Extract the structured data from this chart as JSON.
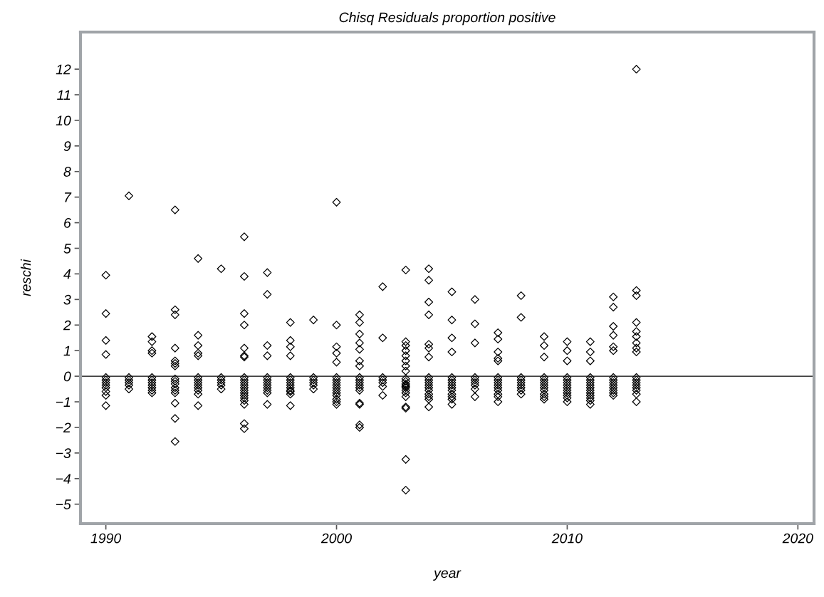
{
  "chart_data": {
    "type": "scatter",
    "title": "Chisq Residuals proportion positive",
    "xlabel": "year",
    "ylabel": "reschi",
    "marker": "diamond",
    "grid": false,
    "legend": false,
    "xlim": [
      1988.9,
      2020.7
    ],
    "ylim": [
      -5.76,
      13.45
    ],
    "xticks": [
      1990,
      2000,
      2010,
      2020
    ],
    "yticks": [
      -5,
      -4,
      -3,
      -2,
      -1,
      0,
      1,
      2,
      3,
      4,
      5,
      6,
      7,
      8,
      9,
      10,
      11,
      12
    ],
    "ref_lines": [
      {
        "axis": "y",
        "value": 0,
        "color": "#000000"
      }
    ],
    "series": [
      {
        "color": "#000000",
        "x": [
          1990,
          1990,
          1990,
          1990,
          1990,
          1990,
          1990,
          1990,
          1990,
          1990,
          1990,
          1990,
          1991,
          1991,
          1991,
          1991,
          1991,
          1991,
          1992,
          1992,
          1992,
          1992,
          1992,
          1992,
          1992,
          1992,
          1992,
          1992,
          1992,
          1993,
          1993,
          1993,
          1993,
          1993,
          1993,
          1993,
          1993,
          1993,
          1993,
          1993,
          1993,
          1993,
          1993,
          1993,
          1993,
          1994,
          1994,
          1994,
          1994,
          1994,
          1994,
          1994,
          1994,
          1994,
          1994,
          1994,
          1994,
          1994,
          1995,
          1995,
          1995,
          1995,
          1995,
          1995,
          1996,
          1996,
          1996,
          1996,
          1996,
          1996,
          1996,
          1996,
          1996,
          1996,
          1996,
          1996,
          1996,
          1996,
          1996,
          1996,
          1996,
          1996,
          1996,
          1996,
          1997,
          1997,
          1997,
          1997,
          1997,
          1997,
          1997,
          1997,
          1997,
          1997,
          1997,
          1997,
          1998,
          1998,
          1998,
          1998,
          1998,
          1998,
          1998,
          1998,
          1998,
          1998,
          1998,
          1998,
          1998,
          1999,
          1999,
          1999,
          1999,
          1999,
          1999,
          2000,
          2000,
          2000,
          2000,
          2000,
          2000,
          2000,
          2000,
          2000,
          2000,
          2000,
          2000,
          2000,
          2000,
          2000,
          2000,
          2001,
          2001,
          2001,
          2001,
          2001,
          2001,
          2001,
          2001,
          2001,
          2001,
          2001,
          2001,
          2001,
          2001,
          2001,
          2001,
          2001,
          2002,
          2002,
          2002,
          2002,
          2002,
          2002,
          2002,
          2003,
          2003,
          2003,
          2003,
          2003,
          2003,
          2003,
          2003,
          2003,
          2003,
          2003,
          2003,
          2003,
          2003,
          2003,
          2003,
          2003,
          2003,
          2003,
          2003,
          2003,
          2004,
          2004,
          2004,
          2004,
          2004,
          2004,
          2004,
          2004,
          2004,
          2004,
          2004,
          2004,
          2004,
          2004,
          2004,
          2004,
          2004,
          2005,
          2005,
          2005,
          2005,
          2005,
          2005,
          2005,
          2005,
          2005,
          2005,
          2005,
          2005,
          2005,
          2005,
          2006,
          2006,
          2006,
          2006,
          2006,
          2006,
          2006,
          2006,
          2006,
          2007,
          2007,
          2007,
          2007,
          2007,
          2007,
          2007,
          2007,
          2007,
          2007,
          2007,
          2007,
          2007,
          2007,
          2008,
          2008,
          2008,
          2008,
          2008,
          2008,
          2008,
          2008,
          2008,
          2009,
          2009,
          2009,
          2009,
          2009,
          2009,
          2009,
          2009,
          2009,
          2009,
          2009,
          2009,
          2010,
          2010,
          2010,
          2010,
          2010,
          2010,
          2010,
          2010,
          2010,
          2010,
          2010,
          2010,
          2010,
          2011,
          2011,
          2011,
          2011,
          2011,
          2011,
          2011,
          2011,
          2011,
          2011,
          2011,
          2011,
          2011,
          2011,
          2012,
          2012,
          2012,
          2012,
          2012,
          2012,
          2012,
          2012,
          2012,
          2012,
          2012,
          2012,
          2012,
          2012,
          2013,
          2013,
          2013,
          2013,
          2013,
          2013,
          2013,
          2013,
          2013,
          2013,
          2013,
          2013,
          2013,
          2013,
          2013,
          2013,
          2013
        ],
        "values": [
          3.95,
          2.45,
          1.4,
          0.85,
          -0.05,
          -0.15,
          -0.25,
          -0.35,
          -0.45,
          -0.6,
          -0.75,
          -1.15,
          7.05,
          -0.05,
          -0.15,
          -0.25,
          -0.35,
          -0.5,
          1.55,
          1.35,
          1.0,
          0.9,
          -0.05,
          -0.15,
          -0.25,
          -0.35,
          -0.45,
          -0.55,
          -0.65,
          6.5,
          2.6,
          2.4,
          1.1,
          0.6,
          0.5,
          0.4,
          -0.1,
          -0.2,
          -0.3,
          -0.45,
          -0.55,
          -0.65,
          -1.05,
          -1.65,
          -2.55,
          4.6,
          1.6,
          1.2,
          0.9,
          0.8,
          -0.05,
          -0.15,
          -0.25,
          -0.35,
          -0.45,
          -0.55,
          -0.7,
          -1.15,
          4.2,
          -0.05,
          -0.15,
          -0.25,
          -0.35,
          -0.5,
          5.45,
          3.9,
          2.45,
          2.0,
          1.1,
          0.8,
          0.75,
          -0.05,
          -0.15,
          -0.25,
          -0.35,
          -0.45,
          -0.55,
          -0.65,
          -0.75,
          -0.85,
          -0.95,
          -1.1,
          -1.85,
          -2.05,
          4.05,
          3.2,
          1.2,
          0.8,
          -0.05,
          -0.15,
          -0.25,
          -0.35,
          -0.45,
          -0.55,
          -0.65,
          -1.1,
          2.1,
          1.4,
          1.15,
          0.8,
          -0.05,
          -0.15,
          -0.25,
          -0.35,
          -0.45,
          -0.55,
          -0.7,
          -1.15,
          -0.6,
          2.2,
          -0.05,
          -0.15,
          -0.25,
          -0.35,
          -0.5,
          6.8,
          2.0,
          1.15,
          0.9,
          0.55,
          -0.05,
          -0.15,
          -0.25,
          -0.35,
          -0.45,
          -0.55,
          -0.65,
          -0.75,
          -0.9,
          -1.1,
          -1.0,
          2.4,
          2.1,
          1.65,
          1.3,
          1.05,
          0.6,
          0.4,
          -0.05,
          -0.15,
          -0.25,
          -0.35,
          -0.45,
          -0.55,
          -1.05,
          -1.1,
          -1.9,
          -2.0,
          3.5,
          1.5,
          -0.05,
          -0.15,
          -0.25,
          -0.4,
          -0.75,
          4.15,
          1.35,
          1.2,
          1.0,
          0.8,
          0.6,
          0.4,
          0.2,
          -0.1,
          -0.2,
          -0.3,
          -0.4,
          -0.55,
          -0.8,
          -1.2,
          -1.25,
          -3.25,
          -4.45,
          -0.65,
          -0.45,
          -0.35,
          4.2,
          3.75,
          2.9,
          2.4,
          1.25,
          1.1,
          0.75,
          -0.05,
          -0.15,
          -0.25,
          -0.35,
          -0.45,
          -0.55,
          -0.7,
          -0.9,
          -1.2,
          -0.8,
          3.3,
          2.2,
          1.5,
          0.95,
          -0.05,
          -0.15,
          -0.25,
          -0.35,
          -0.45,
          -0.55,
          -0.7,
          -0.9,
          -1.1,
          -0.8,
          3.0,
          2.05,
          1.3,
          -0.05,
          -0.15,
          -0.25,
          -0.35,
          -0.5,
          -0.8,
          1.7,
          1.45,
          0.95,
          0.7,
          0.6,
          -0.05,
          -0.15,
          -0.25,
          -0.35,
          -0.45,
          -0.55,
          -0.7,
          -0.8,
          -1.0,
          3.15,
          2.3,
          -0.05,
          -0.15,
          -0.25,
          -0.35,
          -0.45,
          -0.55,
          -0.7,
          1.55,
          1.2,
          0.75,
          -0.05,
          -0.15,
          -0.25,
          -0.35,
          -0.45,
          -0.55,
          -0.7,
          -0.8,
          -0.9,
          1.35,
          1.0,
          0.6,
          -0.05,
          -0.15,
          -0.25,
          -0.35,
          -0.45,
          -0.55,
          -0.65,
          -0.75,
          -0.85,
          -1.0,
          1.35,
          0.95,
          0.6,
          -0.05,
          -0.15,
          -0.25,
          -0.35,
          -0.45,
          -0.55,
          -0.65,
          -0.75,
          -0.85,
          -0.95,
          -1.1,
          3.1,
          2.7,
          1.95,
          1.6,
          1.15,
          1.0,
          -0.05,
          -0.15,
          -0.25,
          -0.35,
          -0.45,
          -0.55,
          -0.65,
          -0.75,
          12.0,
          3.35,
          3.15,
          2.1,
          1.75,
          1.55,
          1.3,
          1.1,
          0.95,
          -0.05,
          -0.15,
          -0.25,
          -0.35,
          -0.45,
          -0.55,
          -0.7,
          -1.0
        ]
      }
    ]
  }
}
